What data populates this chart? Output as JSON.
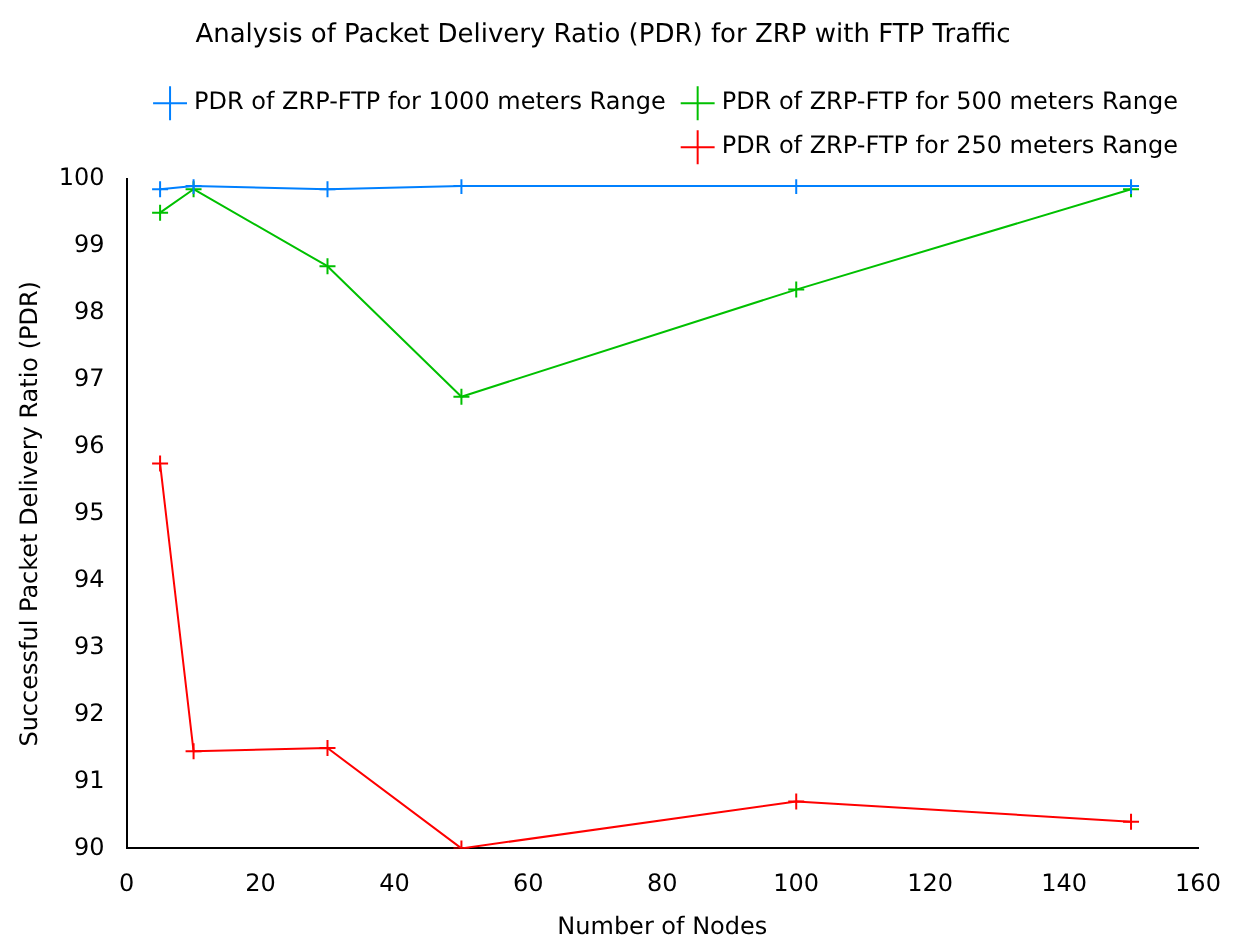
{
  "chart_data": {
    "type": "line",
    "title": "Analysis of Packet Delivery Ratio (PDR) for ZRP with FTP Traffic",
    "xlabel": "Number of Nodes",
    "ylabel": "Successful Packet Delivery Ratio (PDR)",
    "x": [
      5,
      10,
      30,
      50,
      100,
      150
    ],
    "series": [
      {
        "name": "PDR of ZRP-FTP for 250 meters Range",
        "color": "#ff0000",
        "marker": "cross",
        "values": [
          95.75,
          91.45,
          91.5,
          90,
          90.7,
          90.4
        ]
      },
      {
        "name": "PDR of ZRP-FTP for 500 meters Range",
        "color": "#00c000",
        "marker": "cross",
        "values": [
          99.5,
          99.85,
          98.7,
          96.75,
          98.35,
          99.85
        ]
      },
      {
        "name": "PDR of ZRP-FTP for 1000 meters Range",
        "color": "#0080ff",
        "marker": "cross",
        "values": [
          99.85,
          99.9,
          99.85,
          99.9,
          99.9,
          99.9
        ]
      }
    ],
    "xlim": [
      0,
      160
    ],
    "xticks": [
      0,
      20,
      40,
      60,
      80,
      100,
      120,
      140,
      160
    ],
    "ylim": [
      90,
      100
    ],
    "yticks": [
      90,
      91,
      92,
      93,
      94,
      95,
      96,
      97,
      98,
      99,
      100
    ],
    "grid": false,
    "legend": "top right"
  }
}
